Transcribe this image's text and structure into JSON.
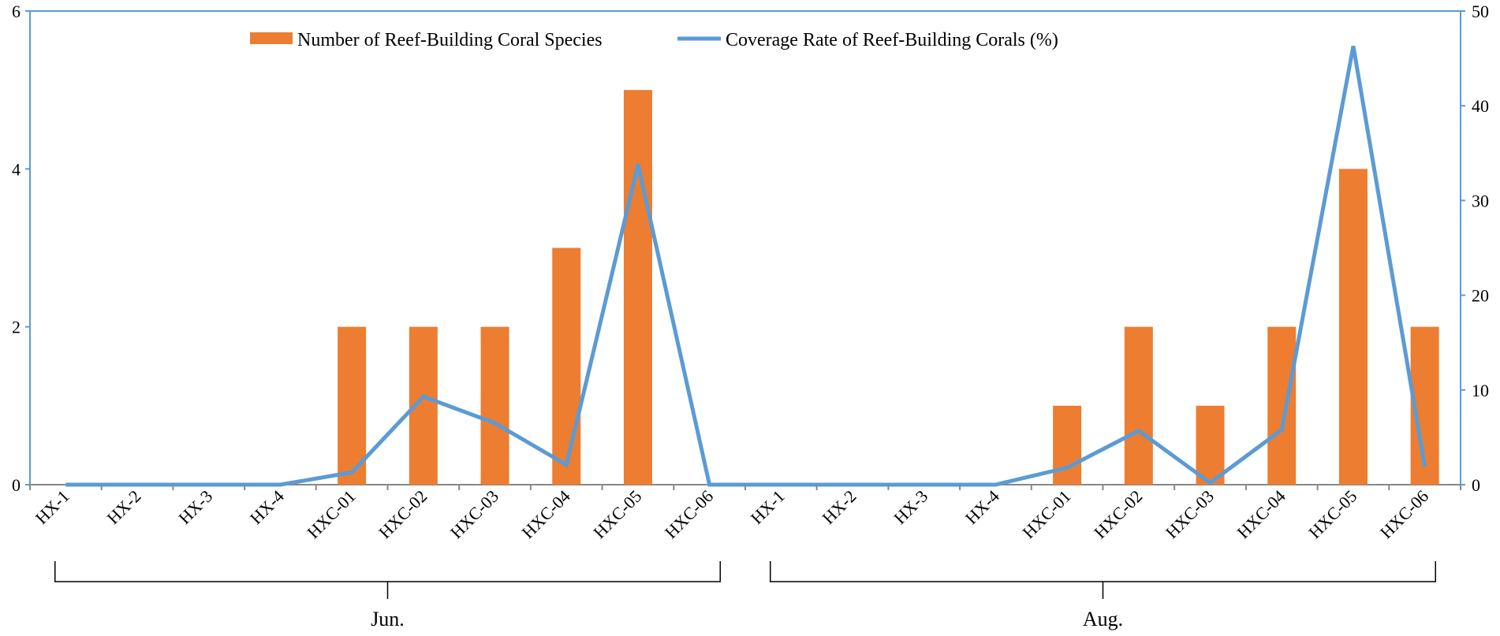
{
  "chart_data": {
    "type": "bar+line",
    "title": "",
    "categories": [
      "HX-1",
      "HX-2",
      "HX-3",
      "HX-4",
      "HXC-01",
      "HXC-02",
      "HXC-03",
      "HXC-04",
      "HXC-05",
      "HXC-06",
      "HX-1",
      "HX-2",
      "HX-3",
      "HX-4",
      "HXC-01",
      "HXC-02",
      "HXC-03",
      "HXC-04",
      "HXC-05",
      "HXC-06"
    ],
    "groups": [
      {
        "label": "Jun.",
        "start": 0,
        "end": 9
      },
      {
        "label": "Aug.",
        "start": 10,
        "end": 19
      }
    ],
    "series": [
      {
        "name": "Number of Reef-Building Coral Species",
        "kind": "bar",
        "axis": "left",
        "color": "#ED7D31",
        "values": [
          0,
          0,
          0,
          0,
          2,
          2,
          2,
          3,
          5,
          0,
          0,
          0,
          0,
          0,
          1,
          2,
          1,
          2,
          4,
          2
        ]
      },
      {
        "name": "Coverage Rate of Reef-Building Corals (%)",
        "kind": "line",
        "axis": "right",
        "color": "#5B9BD5",
        "values": [
          0,
          0,
          0,
          0,
          1.3,
          9.3,
          6.5,
          2.1,
          33.8,
          0,
          0,
          0,
          0,
          0,
          1.8,
          5.7,
          0.2,
          5.8,
          46.3,
          1.9
        ]
      }
    ],
    "y_left": {
      "min": 0,
      "max": 6,
      "ticks": [
        0,
        2,
        4,
        6
      ],
      "labels": [
        "0",
        "2",
        "4",
        "6"
      ]
    },
    "y_right": {
      "min": 0,
      "max": 50,
      "ticks": [
        0,
        10,
        20,
        30,
        40,
        50
      ],
      "labels": [
        "0",
        "10",
        "20",
        "30",
        "40",
        "50"
      ]
    },
    "legend_position": "top-center",
    "grid": false
  }
}
